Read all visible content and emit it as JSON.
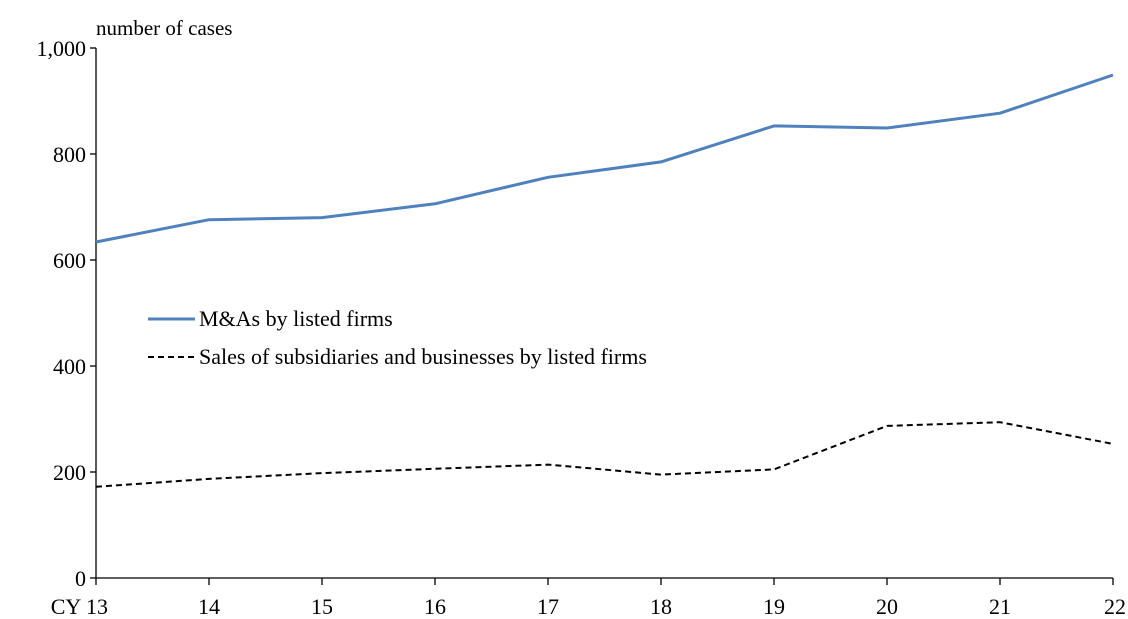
{
  "chart_data": {
    "type": "line",
    "title": "",
    "unit_label": "number of cases",
    "x": [
      "CY 13",
      "14",
      "15",
      "16",
      "17",
      "18",
      "19",
      "20",
      "21",
      "22"
    ],
    "ylim": [
      0,
      1000
    ],
    "yticks": [
      0,
      200,
      400,
      600,
      800,
      1000
    ],
    "ytick_labels": [
      "0",
      "200",
      "400",
      "600",
      "800",
      "1,000"
    ],
    "grid": false,
    "legend_position": "center-left",
    "series": [
      {
        "name": "M&As by listed firms",
        "color": "#4f81bd",
        "style": "solid",
        "values": [
          634,
          676,
          680,
          706,
          756,
          785,
          853,
          849,
          877,
          949
        ]
      },
      {
        "name": "Sales of subsidiaries and businesses by listed firms",
        "color": "#000000",
        "style": "dashed",
        "values": [
          172,
          187,
          198,
          206,
          214,
          195,
          205,
          287,
          294,
          253
        ]
      }
    ]
  }
}
